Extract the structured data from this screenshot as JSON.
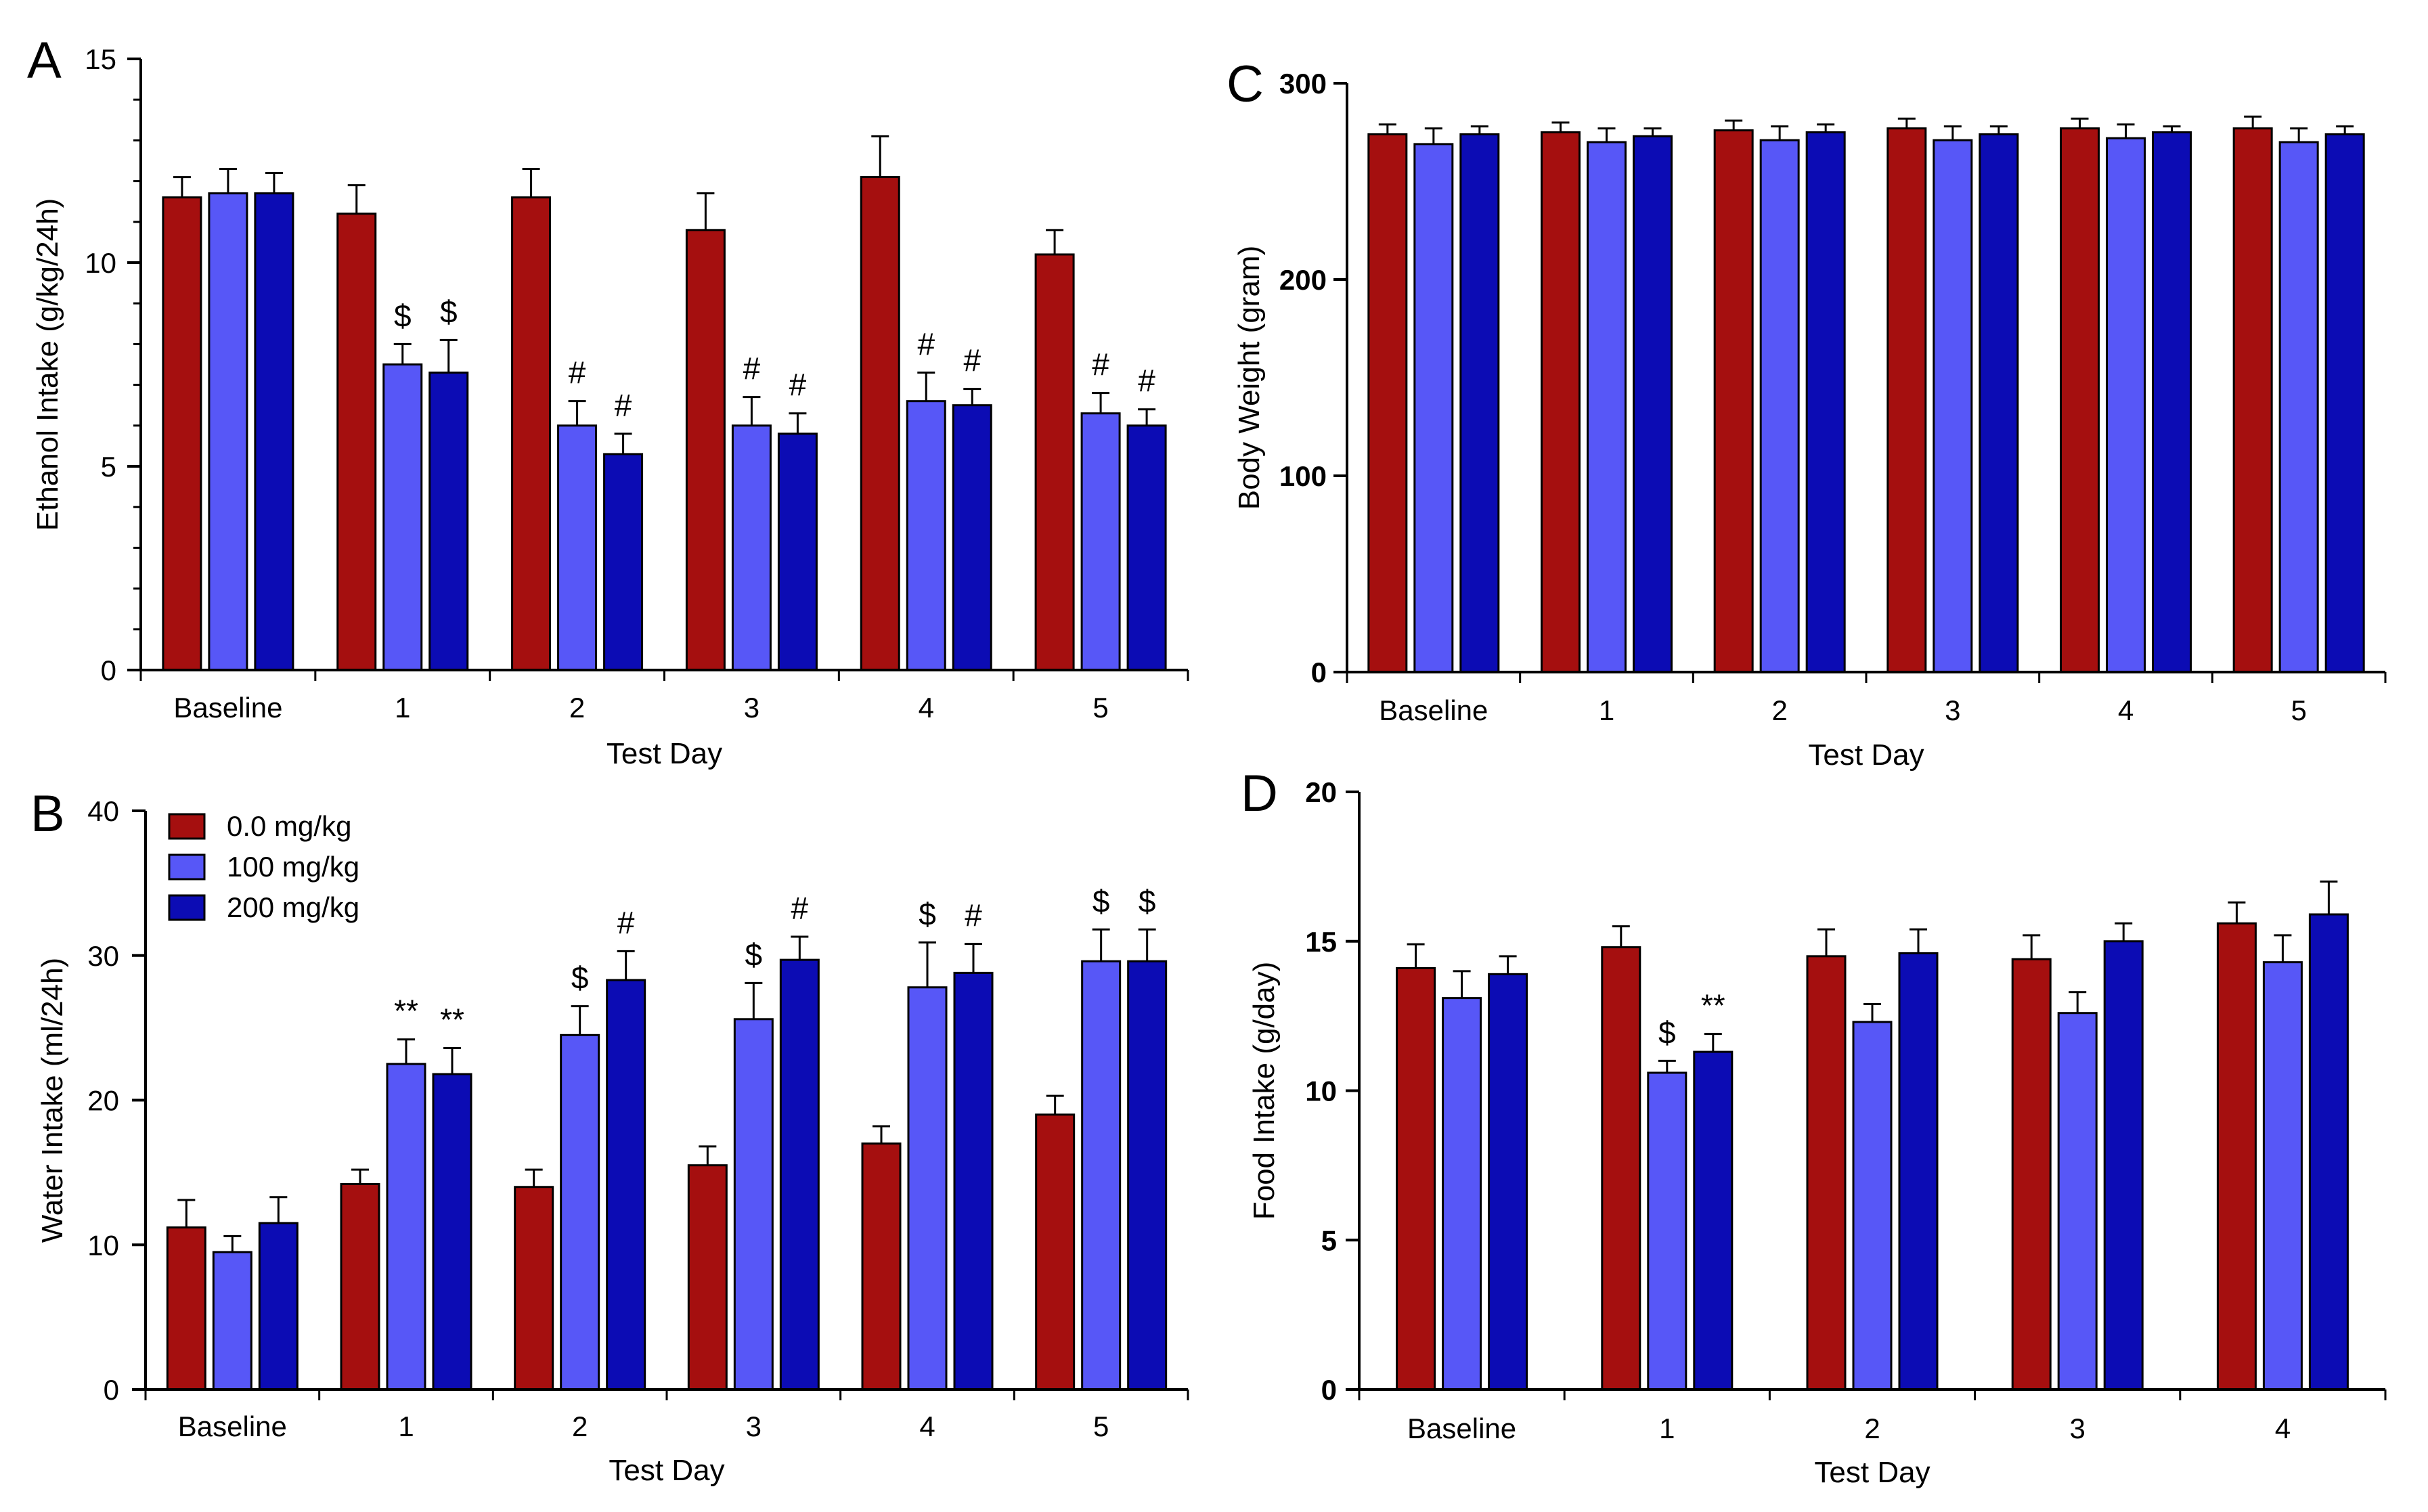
{
  "legend": [
    {
      "label": "0.0 mg/kg",
      "color": "#a50f0f"
    },
    {
      "label": "100 mg/kg",
      "color": "#5757f7"
    },
    {
      "label": "200 mg/kg",
      "color": "#0c0cb4"
    }
  ],
  "chart_data": [
    {
      "id": "A",
      "letter": "A",
      "type": "bar",
      "title": "",
      "xlabel": "Test  Day",
      "ylabel": "Ethanol Intake (g/kg/24h)",
      "ylim": [
        0,
        15
      ],
      "yticks": [
        0,
        5,
        10,
        15
      ],
      "categories": [
        "Baseline",
        "1",
        "2",
        "3",
        "4",
        "5"
      ],
      "series": [
        {
          "name": "0.0 mg/kg",
          "values": [
            11.6,
            11.2,
            11.6,
            10.8,
            12.1,
            10.2
          ],
          "errors": [
            0.5,
            0.7,
            0.7,
            0.9,
            1.0,
            0.6
          ]
        },
        {
          "name": "100 mg/kg",
          "values": [
            11.7,
            7.5,
            6.0,
            6.0,
            6.6,
            6.3
          ],
          "errors": [
            0.6,
            0.5,
            0.6,
            0.7,
            0.7,
            0.5
          ]
        },
        {
          "name": "200 mg/kg",
          "values": [
            11.7,
            7.3,
            5.3,
            5.8,
            6.5,
            6.0
          ],
          "errors": [
            0.5,
            0.8,
            0.5,
            0.5,
            0.4,
            0.4
          ]
        }
      ],
      "annotations": [
        {
          "category": 1,
          "series": 1,
          "text": "$"
        },
        {
          "category": 1,
          "series": 2,
          "text": "$"
        },
        {
          "category": 2,
          "series": 1,
          "text": "#"
        },
        {
          "category": 2,
          "series": 2,
          "text": "#"
        },
        {
          "category": 3,
          "series": 1,
          "text": "#"
        },
        {
          "category": 3,
          "series": 2,
          "text": "#"
        },
        {
          "category": 4,
          "series": 1,
          "text": "#"
        },
        {
          "category": 4,
          "series": 2,
          "text": "#"
        },
        {
          "category": 5,
          "series": 1,
          "text": "#"
        },
        {
          "category": 5,
          "series": 2,
          "text": "#"
        }
      ]
    },
    {
      "id": "B",
      "letter": "B",
      "type": "bar",
      "title": "",
      "xlabel": "Test Day",
      "ylabel": "Water Intake (ml/24h)",
      "ylim": [
        0,
        40
      ],
      "yticks": [
        0,
        10,
        20,
        30,
        40
      ],
      "categories": [
        "Baseline",
        "1",
        "2",
        "3",
        "4",
        "5"
      ],
      "series": [
        {
          "name": "0.0 mg/kg",
          "values": [
            11.2,
            14.2,
            14.0,
            15.5,
            17.0,
            19.0
          ],
          "errors": [
            1.9,
            1.0,
            1.2,
            1.3,
            1.2,
            1.3
          ]
        },
        {
          "name": "100 mg/kg",
          "values": [
            9.5,
            22.5,
            24.5,
            25.6,
            27.8,
            29.6
          ],
          "errors": [
            1.1,
            1.7,
            2.0,
            2.5,
            3.1,
            2.2
          ]
        },
        {
          "name": "200 mg/kg",
          "values": [
            11.5,
            21.8,
            28.3,
            29.7,
            28.8,
            29.6
          ],
          "errors": [
            1.8,
            1.8,
            2.0,
            1.6,
            2.0,
            2.2
          ]
        }
      ],
      "annotations": [
        {
          "category": 1,
          "series": 1,
          "text": "**"
        },
        {
          "category": 1,
          "series": 2,
          "text": "**"
        },
        {
          "category": 2,
          "series": 1,
          "text": "$"
        },
        {
          "category": 2,
          "series": 2,
          "text": "#"
        },
        {
          "category": 3,
          "series": 1,
          "text": "$"
        },
        {
          "category": 3,
          "series": 2,
          "text": "#"
        },
        {
          "category": 4,
          "series": 1,
          "text": "$"
        },
        {
          "category": 4,
          "series": 2,
          "text": "#"
        },
        {
          "category": 5,
          "series": 1,
          "text": "$"
        },
        {
          "category": 5,
          "series": 2,
          "text": "$"
        }
      ]
    },
    {
      "id": "C",
      "letter": "C",
      "type": "bar",
      "title": "",
      "xlabel": "Test Day",
      "ylabel": "Body  Weight (gram)",
      "ylim": [
        0,
        300
      ],
      "yticks": [
        0,
        100,
        200,
        300
      ],
      "bold_ticks": true,
      "categories": [
        "Baseline",
        "1",
        "2",
        "3",
        "4",
        "5"
      ],
      "series": [
        {
          "name": "0.0 mg/kg",
          "values": [
            274,
            275,
            276,
            277,
            277,
            277
          ],
          "errors": [
            5,
            5,
            5,
            5,
            5,
            6
          ]
        },
        {
          "name": "100 mg/kg",
          "values": [
            269,
            270,
            271,
            271,
            272,
            270
          ],
          "errors": [
            8,
            7,
            7,
            7,
            7,
            7
          ]
        },
        {
          "name": "200 mg/kg",
          "values": [
            274,
            273,
            275,
            274,
            275,
            274
          ],
          "errors": [
            4,
            4,
            4,
            4,
            3,
            4
          ]
        }
      ],
      "annotations": []
    },
    {
      "id": "D",
      "letter": "D",
      "type": "bar",
      "title": "",
      "xlabel": "Test Day",
      "ylabel": "Food Intake (g/day)",
      "ylim": [
        0,
        20
      ],
      "yticks": [
        0,
        5,
        10,
        15,
        20
      ],
      "bold_ticks": true,
      "categories": [
        "Baseline",
        "1",
        "2",
        "3",
        "4"
      ],
      "series": [
        {
          "name": "0.0 mg/kg",
          "values": [
            14.1,
            14.8,
            14.5,
            14.4,
            15.6
          ],
          "errors": [
            0.8,
            0.7,
            0.9,
            0.8,
            0.7
          ]
        },
        {
          "name": "100 mg/kg",
          "values": [
            13.1,
            10.6,
            12.3,
            12.6,
            14.3
          ],
          "errors": [
            0.9,
            0.4,
            0.6,
            0.7,
            0.9
          ]
        },
        {
          "name": "200 mg/kg",
          "values": [
            13.9,
            11.3,
            14.6,
            15.0,
            15.9
          ],
          "errors": [
            0.6,
            0.6,
            0.8,
            0.6,
            1.1
          ]
        }
      ],
      "annotations": [
        {
          "category": 1,
          "series": 1,
          "text": "$"
        },
        {
          "category": 1,
          "series": 2,
          "text": "**"
        }
      ]
    }
  ]
}
